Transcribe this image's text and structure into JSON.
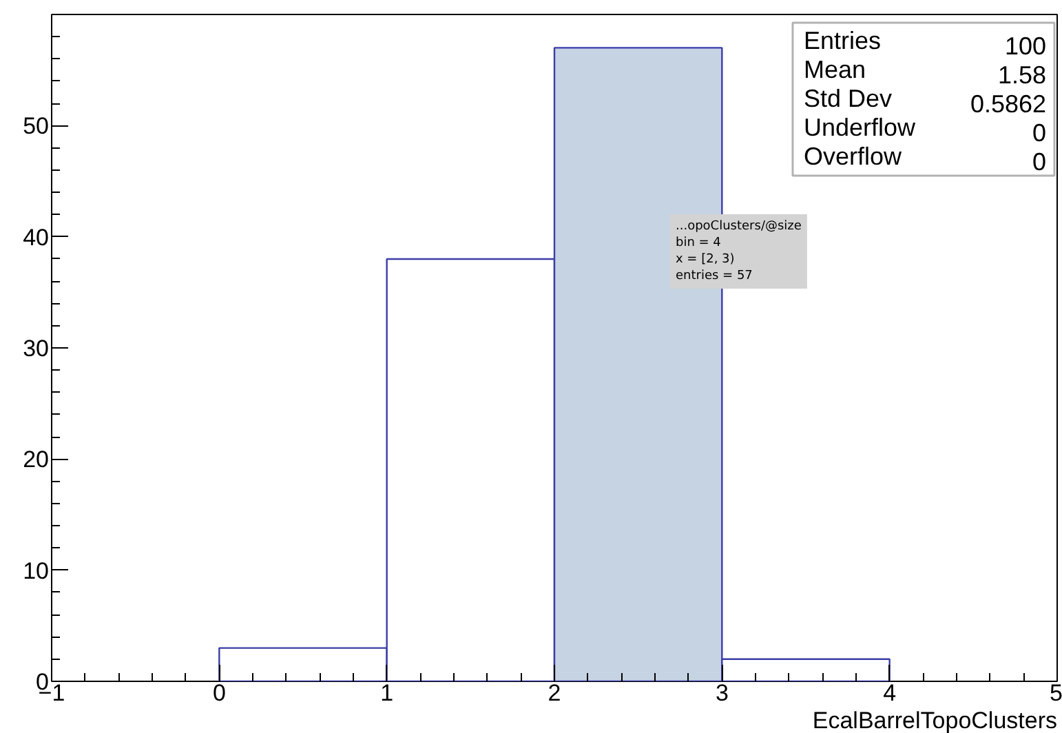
{
  "chart_data": {
    "type": "histogram",
    "bins": [
      -1,
      0,
      1,
      2,
      3,
      4,
      5
    ],
    "values": [
      0,
      3,
      38,
      57,
      2,
      0
    ],
    "color": "#3c3ca8",
    "colors": [
      "#ffffff",
      "#ffffff",
      "#ffffff",
      "#c6d3e2",
      "#ffffff",
      "#ffffff"
    ],
    "xlabel": "EcalBarrelTopoClusters",
    "xlim": [
      -1,
      5
    ],
    "xticks": [
      -1,
      0,
      1,
      2,
      3,
      4,
      5
    ],
    "ylim": [
      0,
      60
    ],
    "yticks": [
      0,
      10,
      20,
      30,
      40,
      50
    ],
    "grid": false,
    "annotations": [
      "Entries 100",
      "Mean 1.58",
      "Std Dev 0.5862",
      "Underflow 0",
      "Overflow 0",
      "...opoClusters/@size\nbin = 4\nx = [2, 3)\nentries = 57"
    ]
  }
}
